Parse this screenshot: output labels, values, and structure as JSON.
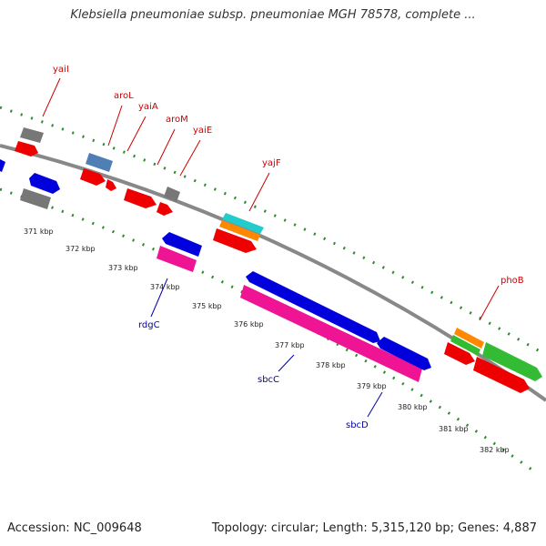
{
  "title": "Klebsiella pneumoniae subsp. pneumoniae MGH 78578, complete ...",
  "accession_text": "Accession: NC_009648",
  "summary_text": "Topology: circular; Length: 5,315,120 bp; Genes: 4,887",
  "colors": {
    "backbone": "#888888",
    "dots": "#2e8b2e",
    "upper_label": "#cc0000",
    "lower_label": "#0000aa",
    "gray_gene": "#777777",
    "blue_gene": "#0000dd",
    "red_gene": "#ee0000",
    "pink_gene": "#ee1493",
    "cyan_gene": "#22cccc",
    "orange_gene": "#ff8800",
    "green_gene": "#33bb33",
    "steel_gene": "#4f7fb5"
  },
  "ticks": [
    "371 kbp",
    "372 kbp",
    "373 kbp",
    "374 kbp",
    "375 kbp",
    "376 kbp",
    "377 kbp",
    "378 kbp",
    "379 kbp",
    "380 kbp",
    "381 kbp",
    "382 kbp"
  ],
  "genes_upper": [
    "yaiI",
    "aroL",
    "yaiA",
    "aroM",
    "yaiE",
    "yajF",
    "phoB"
  ],
  "genes_lower": [
    "rdgC",
    "sbcC",
    "sbcD"
  ]
}
